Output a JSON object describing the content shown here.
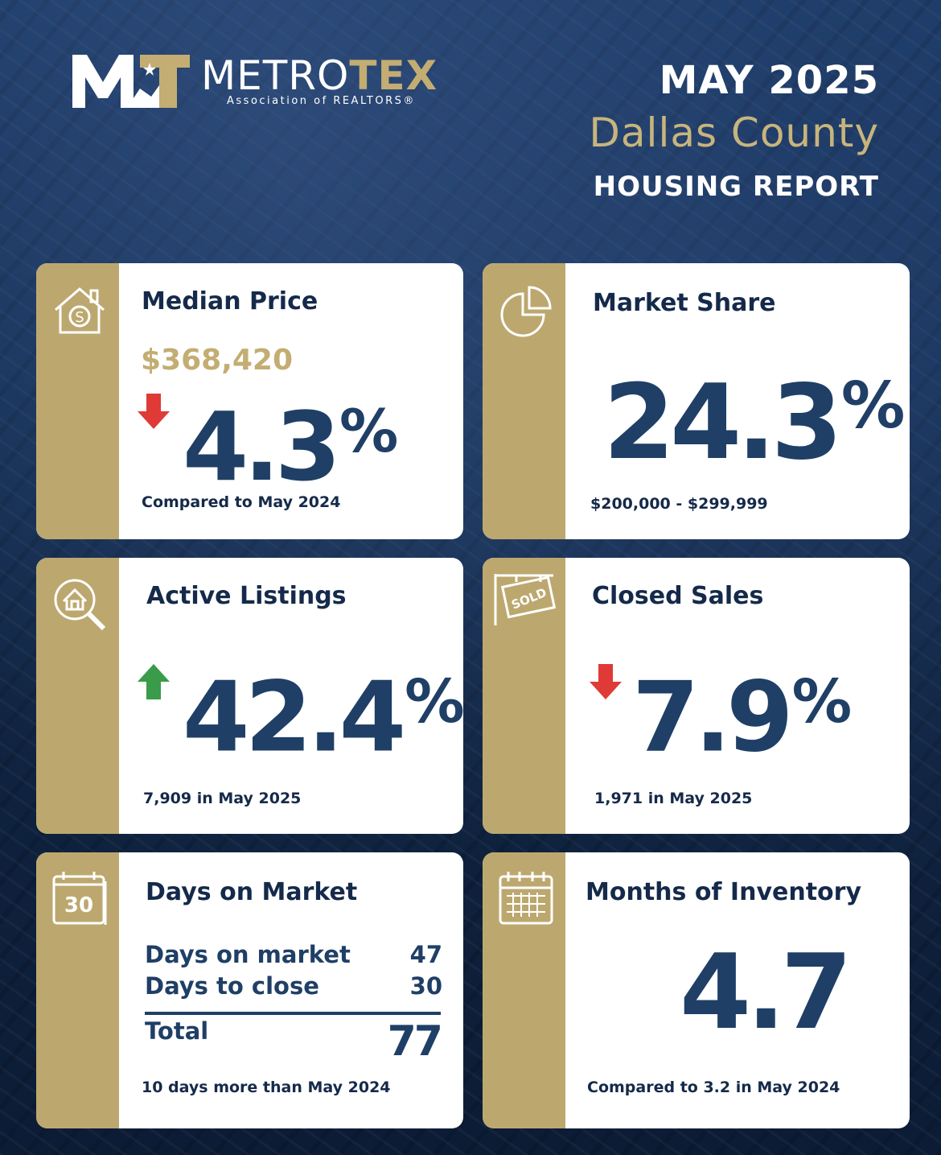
{
  "brand": {
    "name_part1": "METRO",
    "name_part2": "TEX",
    "subtitle": "Association of REALTORS®"
  },
  "header": {
    "month": "MAY 2025",
    "county": "Dallas County",
    "report": "HOUSING REPORT"
  },
  "colors": {
    "navy": "#1f3f66",
    "gold": "#bca86f",
    "down_arrow": "#e03a36",
    "up_arrow": "#3a9b4a"
  },
  "cards": {
    "median_price": {
      "icon": "house-dollar-icon",
      "title": "Median Price",
      "price": "$368,420",
      "change_direction": "down",
      "change_value": "4.3",
      "change_unit": "%",
      "note": "Compared to May 2024"
    },
    "market_share": {
      "icon": "pie-chart-icon",
      "title": "Market Share",
      "value": "24.3",
      "unit": "%",
      "note": "$200,000 - $299,999"
    },
    "active_listings": {
      "icon": "house-search-icon",
      "title": "Active Listings",
      "change_direction": "up",
      "change_value": "42.4",
      "change_unit": "%",
      "note": "7,909 in May 2025"
    },
    "closed_sales": {
      "icon": "sold-sign-icon",
      "title": "Closed Sales",
      "sign_text": "SOLD",
      "change_direction": "down",
      "change_value": "7.9",
      "change_unit": "%",
      "note": "1,971 in May 2025"
    },
    "days_on_market": {
      "icon": "calendar-30-icon",
      "icon_text": "30",
      "title": "Days on Market",
      "rows": [
        {
          "label": "Days on market",
          "value": "47"
        },
        {
          "label": "Days to close",
          "value": "30"
        }
      ],
      "total_label": "Total",
      "total_value": "77",
      "note": "10 days more than May 2024"
    },
    "months_inventory": {
      "icon": "calendar-grid-icon",
      "title": "Months of Inventory",
      "value": "4.7",
      "note": "Compared to 3.2 in May 2024"
    }
  }
}
